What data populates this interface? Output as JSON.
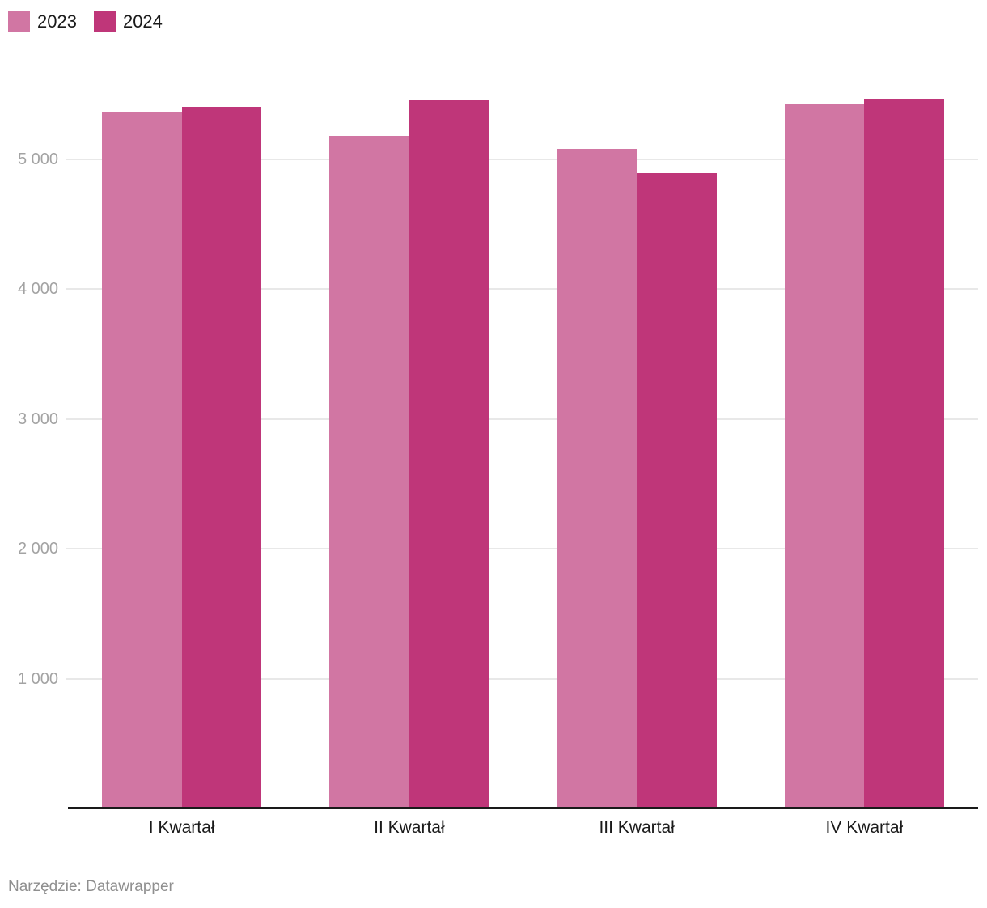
{
  "legend": {
    "items": [
      {
        "label": "2023",
        "color": "#d176a3"
      },
      {
        "label": "2024",
        "color": "#bf3679"
      }
    ]
  },
  "chart_data": {
    "type": "bar",
    "categories": [
      "I Kwartał",
      "II Kwartał",
      "III Kwartał",
      "IV Kwartał"
    ],
    "series": [
      {
        "name": "2023",
        "color": "#d176a3",
        "values": [
          5360,
          5180,
          5080,
          5420
        ]
      },
      {
        "name": "2024",
        "color": "#bf3679",
        "values": [
          5400,
          5450,
          4890,
          5465
        ]
      }
    ],
    "title": "",
    "xlabel": "",
    "ylabel": "",
    "yticks": [
      1000,
      2000,
      3000,
      4000,
      5000
    ],
    "ytick_labels": [
      "1 000",
      "2 000",
      "3 000",
      "4 000",
      "5 000"
    ],
    "ylim": [
      0,
      5600
    ],
    "grid": "horizontal",
    "gridline_color": "#e8e8e8",
    "axis_line_color": "#1a1a1a",
    "legend_position": "top-left"
  },
  "footer": {
    "text": "Narzędzie: Datawrapper"
  }
}
